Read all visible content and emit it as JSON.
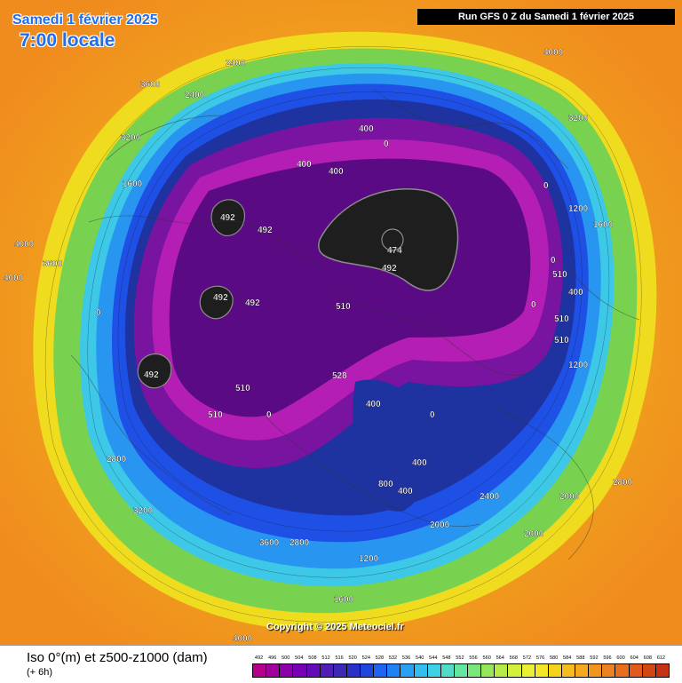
{
  "header": {
    "date": "Samedi 1 février 2025",
    "local_time": "7:00 locale",
    "run": "Run GFS 0 Z du Samedi 1 février 2025"
  },
  "copyright": "Copyright © 2025 Meteociel.fr",
  "footer": {
    "title": "Iso 0°(m) et z500-z1000 (dam)",
    "step": "(+ 6h)"
  },
  "colors": {
    "outer_orange": "#f08c1e",
    "yellow": "#f0dc1e",
    "green": "#78d250",
    "cyan": "#3cc8e6",
    "blue": "#1e50e6",
    "navy": "#1e32a0",
    "purple": "#7814a0",
    "magenta": "#b41eb4",
    "core_black": "#1e1e1e"
  },
  "legend": {
    "values": [
      "492",
      "496",
      "500",
      "504",
      "508",
      "512",
      "516",
      "520",
      "524",
      "528",
      "532",
      "536",
      "540",
      "544",
      "548",
      "552",
      "556",
      "560",
      "564",
      "568",
      "572",
      "576",
      "580",
      "584",
      "588",
      "592",
      "596",
      "600",
      "604",
      "608",
      "612"
    ],
    "colors": [
      "#b4008c",
      "#a0009b",
      "#8c00aa",
      "#7800b4",
      "#640ab9",
      "#501eb4",
      "#3c28b4",
      "#2832c8",
      "#1e46dc",
      "#1e64f0",
      "#1e82f5",
      "#28a0f5",
      "#32bef0",
      "#3cd2e6",
      "#50dcc8",
      "#64e6a0",
      "#78e678",
      "#96e65a",
      "#b4eb46",
      "#d2f03c",
      "#ebf032",
      "#f5e628",
      "#f5d21e",
      "#f5be1e",
      "#f5aa1e",
      "#f0961e",
      "#eb821e",
      "#e66e1e",
      "#e15a1e",
      "#d24614",
      "#c83214"
    ]
  },
  "map_labels": [
    {
      "text": "474"
    },
    {
      "text": "492"
    },
    {
      "text": "492"
    },
    {
      "text": "492"
    },
    {
      "text": "492"
    },
    {
      "text": "492"
    },
    {
      "text": "492"
    },
    {
      "text": "510"
    },
    {
      "text": "510"
    },
    {
      "text": "510"
    },
    {
      "text": "510"
    },
    {
      "text": "510"
    },
    {
      "text": "510"
    },
    {
      "text": "528"
    },
    {
      "text": "0"
    },
    {
      "text": "0"
    },
    {
      "text": "0"
    },
    {
      "text": "0"
    },
    {
      "text": "0"
    },
    {
      "text": "0"
    },
    {
      "text": "0"
    },
    {
      "text": "400"
    },
    {
      "text": "400"
    },
    {
      "text": "400"
    },
    {
      "text": "400"
    },
    {
      "text": "400"
    },
    {
      "text": "400"
    },
    {
      "text": "400"
    },
    {
      "text": "800"
    },
    {
      "text": "1200"
    },
    {
      "text": "1200"
    },
    {
      "text": "1200"
    },
    {
      "text": "1600"
    },
    {
      "text": "1600"
    },
    {
      "text": "1600"
    },
    {
      "text": "2000"
    },
    {
      "text": "2000"
    },
    {
      "text": "2000"
    },
    {
      "text": "2400"
    },
    {
      "text": "2400"
    },
    {
      "text": "2400"
    },
    {
      "text": "2800"
    },
    {
      "text": "2800"
    },
    {
      "text": "2800"
    },
    {
      "text": "3200"
    },
    {
      "text": "3200"
    },
    {
      "text": "3200"
    },
    {
      "text": "3600"
    },
    {
      "text": "3600"
    },
    {
      "text": "3600"
    },
    {
      "text": "4000"
    },
    {
      "text": "4000"
    },
    {
      "text": "4000"
    },
    {
      "text": "4000"
    }
  ]
}
